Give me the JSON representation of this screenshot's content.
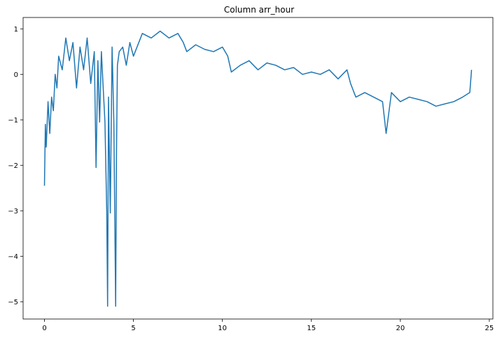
{
  "chart_data": {
    "type": "line",
    "title": "Column arr_hour",
    "xlabel": "",
    "ylabel": "",
    "xlim": [
      -1.2,
      25.2
    ],
    "ylim": [
      -5.38,
      1.25
    ],
    "xticks": [
      0,
      5,
      10,
      15,
      20,
      25
    ],
    "xtick_labels": [
      "0",
      "5",
      "10",
      "15",
      "20",
      "25"
    ],
    "yticks": [
      1,
      0,
      -1,
      -2,
      -3,
      -4,
      -5
    ],
    "ytick_labels": [
      "1",
      "0",
      "−1",
      "−2",
      "−3",
      "−4",
      "−5"
    ],
    "grid": false,
    "line_color": "#1f77b4",
    "series": [
      {
        "x": [
          0.0,
          0.05,
          0.1,
          0.2,
          0.3,
          0.4,
          0.5,
          0.6,
          0.7,
          0.8,
          1.0,
          1.2,
          1.4,
          1.6,
          1.8,
          2.0,
          2.2,
          2.4,
          2.6,
          2.8,
          2.9,
          3.0,
          3.1,
          3.2,
          3.3,
          3.4,
          3.5,
          3.55,
          3.6,
          3.7,
          3.8,
          3.9,
          4.0,
          4.05,
          4.1,
          4.2,
          4.4,
          4.6,
          4.8,
          5.0,
          5.5,
          6.0,
          6.5,
          7.0,
          7.5,
          7.8,
          8.0,
          8.5,
          9.0,
          9.5,
          10.0,
          10.3,
          10.5,
          11.0,
          11.5,
          12.0,
          12.5,
          13.0,
          13.5,
          14.0,
          14.5,
          15.0,
          15.5,
          16.0,
          16.5,
          17.0,
          17.2,
          17.4,
          17.5,
          18.0,
          18.5,
          19.0,
          19.2,
          19.5,
          20.0,
          20.5,
          21.0,
          21.5,
          22.0,
          22.5,
          23.0,
          23.5,
          23.9,
          24.0
        ],
        "y": [
          -2.45,
          -1.1,
          -1.6,
          -0.6,
          -1.3,
          -0.5,
          -0.8,
          0.0,
          -0.3,
          0.4,
          0.1,
          0.8,
          0.3,
          0.7,
          -0.3,
          0.6,
          0.1,
          0.8,
          -0.2,
          0.5,
          -2.05,
          0.3,
          -1.05,
          0.5,
          -0.3,
          -1.05,
          -3.05,
          -5.1,
          -0.5,
          -3.05,
          0.6,
          -1.05,
          -5.1,
          -1.7,
          0.2,
          0.5,
          0.6,
          0.2,
          0.7,
          0.4,
          0.9,
          0.8,
          0.95,
          0.8,
          0.9,
          0.7,
          0.5,
          0.65,
          0.55,
          0.5,
          0.6,
          0.4,
          0.05,
          0.2,
          0.3,
          0.1,
          0.25,
          0.2,
          0.1,
          0.15,
          0.0,
          0.05,
          0.0,
          0.1,
          -0.1,
          0.1,
          -0.2,
          -0.4,
          -0.5,
          -0.4,
          -0.5,
          -0.6,
          -1.3,
          -0.4,
          -0.6,
          -0.5,
          -0.55,
          -0.6,
          -0.7,
          -0.65,
          -0.6,
          -0.5,
          -0.4,
          0.1
        ]
      }
    ]
  }
}
